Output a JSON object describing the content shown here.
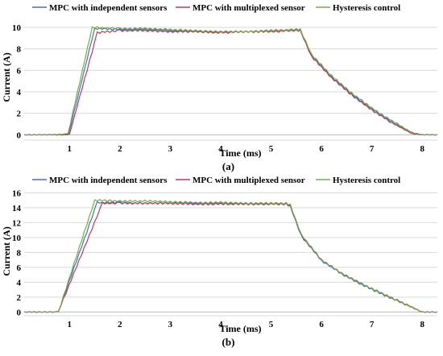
{
  "chart_data": [
    {
      "type": "line",
      "caption": "(a)",
      "xlabel": "Time (ms)",
      "ylabel": "Current (A)",
      "xlim": [
        0.1,
        8.3
      ],
      "ylim": [
        -0.5,
        11.2
      ],
      "xticks": [
        1,
        2,
        3,
        4,
        5,
        6,
        7,
        8
      ],
      "yticks": [
        0,
        2,
        4,
        6,
        8,
        10
      ],
      "grid": "horizontal",
      "legend": "top",
      "series": [
        {
          "name": "MPC with independent sensors",
          "color": "#4472c4",
          "x": [
            0.1,
            0.5,
            0.9,
            0.98,
            1.5,
            2.0,
            2.5,
            3.0,
            3.5,
            4.0,
            4.5,
            5.0,
            5.5,
            5.58,
            5.8,
            6.2,
            6.6,
            7.0,
            7.4,
            7.8,
            8.0,
            8.3
          ],
          "y": [
            0.0,
            0.0,
            0.0,
            0.05,
            9.9,
            9.8,
            9.8,
            9.7,
            9.6,
            9.6,
            9.6,
            9.7,
            9.8,
            9.8,
            7.4,
            5.4,
            3.8,
            2.4,
            1.2,
            0.2,
            0.0,
            0.0
          ]
        },
        {
          "name": "MPC with multiplexed sensor",
          "color": "#c0385a",
          "x": [
            0.1,
            0.5,
            0.9,
            1.0,
            1.55,
            2.0,
            2.5,
            3.0,
            3.5,
            4.0,
            4.5,
            5.0,
            5.5,
            5.58,
            5.8,
            6.2,
            6.6,
            7.0,
            7.4,
            7.8,
            8.0,
            8.3
          ],
          "y": [
            0.0,
            0.0,
            0.0,
            0.05,
            9.5,
            9.7,
            9.7,
            9.6,
            9.6,
            9.5,
            9.6,
            9.6,
            9.7,
            9.7,
            7.3,
            5.3,
            3.7,
            2.3,
            1.1,
            0.1,
            0.0,
            0.0
          ]
        },
        {
          "name": "Hysteresis control",
          "color": "#70ad47",
          "x": [
            0.1,
            0.5,
            0.9,
            0.97,
            1.45,
            2.0,
            2.5,
            3.0,
            3.5,
            4.0,
            4.5,
            5.0,
            5.5,
            5.58,
            5.8,
            6.2,
            6.6,
            7.0,
            7.4,
            7.8,
            8.0,
            8.3
          ],
          "y": [
            0.0,
            0.0,
            0.05,
            0.1,
            10.0,
            9.9,
            9.9,
            9.8,
            9.7,
            9.6,
            9.6,
            9.7,
            9.8,
            9.8,
            7.5,
            5.5,
            3.9,
            2.5,
            1.3,
            0.2,
            0.0,
            0.0
          ]
        }
      ]
    },
    {
      "type": "line",
      "caption": "(b)",
      "xlabel": "Time (ms)",
      "ylabel": "Current (A)",
      "xlim": [
        0.1,
        8.3
      ],
      "ylim": [
        -0.5,
        16.8
      ],
      "xticks": [
        1,
        2,
        3,
        4,
        5,
        6,
        7,
        8
      ],
      "yticks": [
        0,
        2,
        4,
        6,
        8,
        10,
        12,
        14,
        16
      ],
      "grid": "horizontal",
      "legend": "top",
      "series": [
        {
          "name": "MPC with independent sensors",
          "color": "#4472c4",
          "x": [
            0.1,
            0.4,
            0.72,
            0.78,
            1.55,
            2.0,
            2.5,
            3.0,
            3.5,
            4.0,
            4.5,
            5.0,
            5.3,
            5.38,
            5.6,
            6.0,
            6.4,
            6.8,
            7.2,
            7.6,
            8.0,
            8.3
          ],
          "y": [
            0.0,
            0.0,
            0.0,
            0.05,
            14.7,
            14.7,
            14.6,
            14.6,
            14.6,
            14.6,
            14.5,
            14.5,
            14.5,
            14.2,
            10.2,
            6.9,
            5.1,
            3.7,
            2.4,
            1.2,
            0.0,
            0.0
          ]
        },
        {
          "name": "MPC with multiplexed sensor",
          "color": "#c0385a",
          "x": [
            0.1,
            0.4,
            0.72,
            0.78,
            1.65,
            2.0,
            2.5,
            3.0,
            3.5,
            4.0,
            4.5,
            5.0,
            5.3,
            5.38,
            5.6,
            6.0,
            6.4,
            6.8,
            7.2,
            7.6,
            8.0,
            8.3
          ],
          "y": [
            0.0,
            0.0,
            0.0,
            0.05,
            14.6,
            14.6,
            14.6,
            14.6,
            14.5,
            14.5,
            14.5,
            14.5,
            14.5,
            14.3,
            10.3,
            7.0,
            5.2,
            3.8,
            2.5,
            1.3,
            0.0,
            0.0
          ]
        },
        {
          "name": "Hysteresis control",
          "color": "#70ad47",
          "x": [
            0.1,
            0.4,
            0.72,
            0.78,
            1.5,
            2.0,
            2.5,
            3.0,
            3.5,
            4.0,
            4.5,
            5.0,
            5.3,
            5.38,
            5.6,
            6.0,
            6.4,
            6.8,
            7.2,
            7.6,
            8.0,
            8.3
          ],
          "y": [
            0.0,
            0.0,
            0.0,
            0.05,
            15.0,
            14.9,
            14.9,
            14.8,
            14.7,
            14.7,
            14.6,
            14.6,
            14.6,
            14.4,
            10.4,
            7.0,
            5.2,
            3.8,
            2.5,
            1.2,
            0.0,
            0.0
          ]
        }
      ]
    }
  ]
}
